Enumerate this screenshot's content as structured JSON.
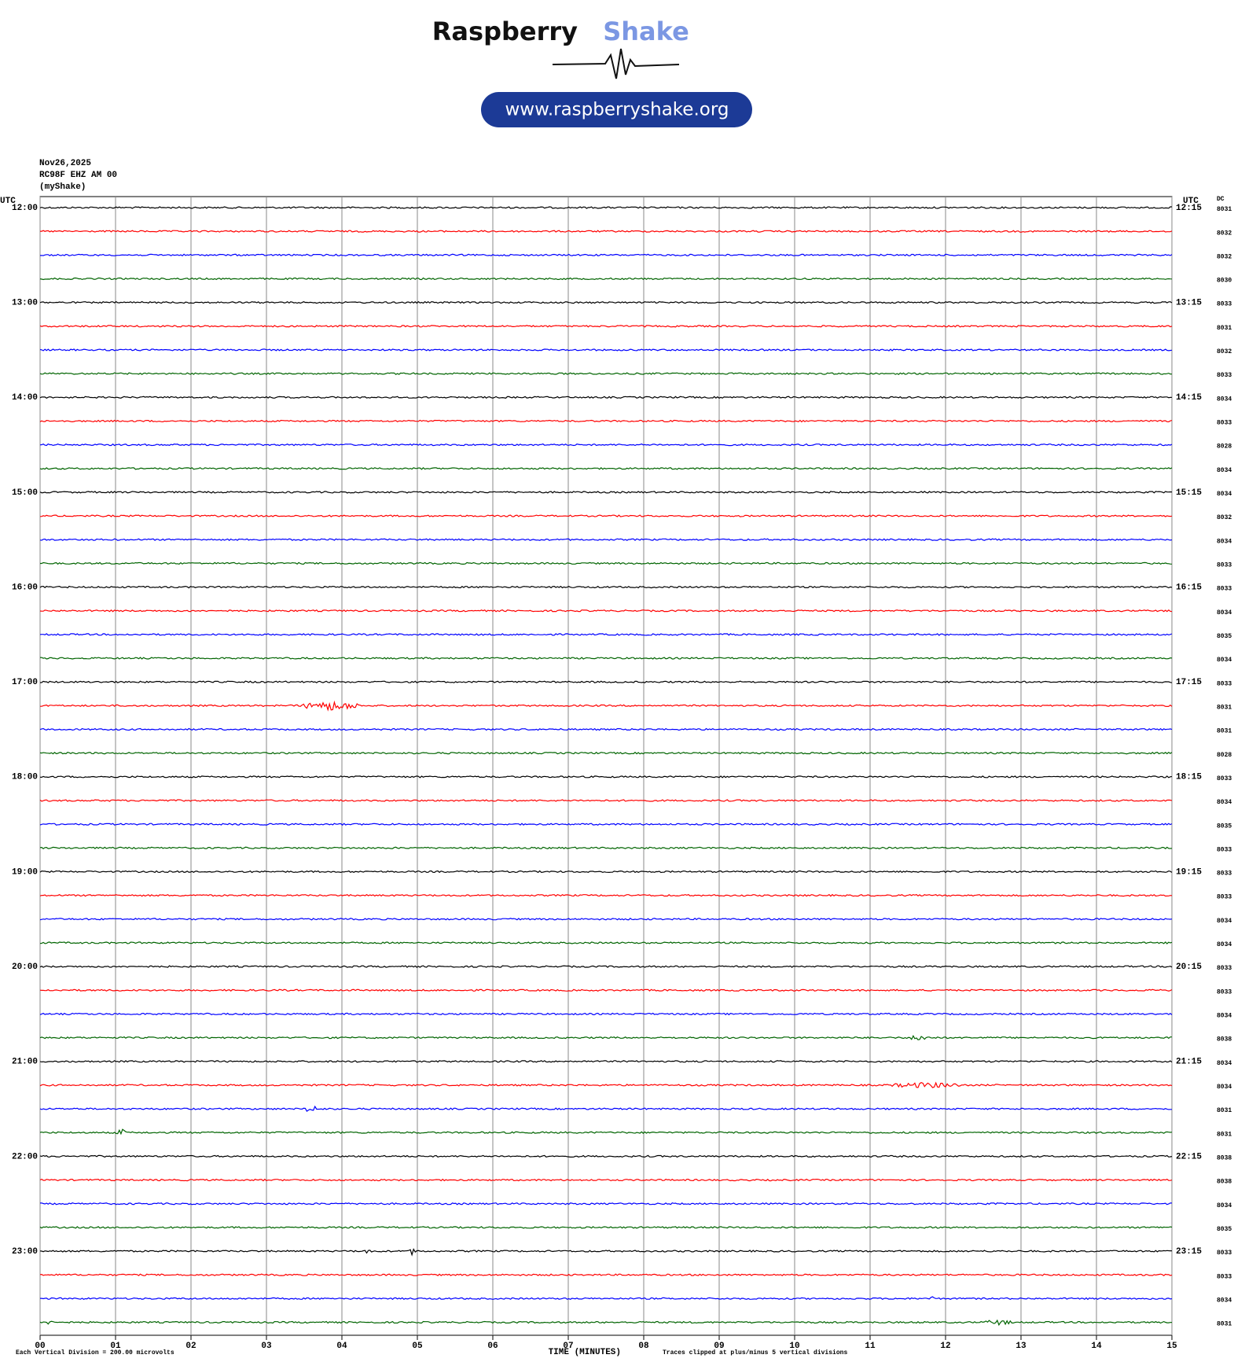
{
  "logo": {
    "brand": "Raspberry",
    "brand_accent": "Shake",
    "url": "www.raspberryshake.org"
  },
  "chart_data": {
    "type": "helicorder",
    "date": "Nov26,2025",
    "station": "RC98F EHZ AM 00",
    "source": "(myShake)",
    "left_axis_title": "UTC",
    "right_axis_title": "UTC",
    "dc_title": "DC",
    "xlabel": "TIME (MINUTES)",
    "scale_note": "Each Vertical Division =  200.00 microvolts",
    "clip_note": "Traces clipped at plus/minus 5 vertical divisions",
    "xlim": [
      0,
      15
    ],
    "xticks": [
      {
        "value": 0,
        "label": "00"
      },
      {
        "value": 1,
        "label": "01"
      },
      {
        "value": 2,
        "label": "02"
      },
      {
        "value": 3,
        "label": "03"
      },
      {
        "value": 4,
        "label": "04"
      },
      {
        "value": 5,
        "label": "05"
      },
      {
        "value": 6,
        "label": "06"
      },
      {
        "value": 7,
        "label": "07"
      },
      {
        "value": 8,
        "label": "08"
      },
      {
        "value": 9,
        "label": "09"
      },
      10,
      11,
      12,
      13,
      14,
      15
    ],
    "grid": true,
    "row_labels_left": [
      "12:00",
      "13:00",
      "14:00",
      "15:00",
      "16:00",
      "17:00",
      "18:00",
      "19:00",
      "20:00",
      "21:00",
      "22:00",
      "23:00"
    ],
    "row_labels_right": [
      "12:15",
      "13:15",
      "14:15",
      "15:15",
      "16:15",
      "17:15",
      "18:15",
      "19:15",
      "20:15",
      "21:15",
      "22:15",
      "23:15"
    ],
    "colors": [
      "#000000",
      "#ff0000",
      "#0000ff",
      "#006400"
    ],
    "dc": [
      8031,
      8032,
      8032,
      8030,
      8033,
      8031,
      8032,
      8033,
      8034,
      8033,
      8028,
      8034,
      8034,
      8032,
      8034,
      8033,
      8033,
      8034,
      8035,
      8034,
      8033,
      8031,
      8031,
      8028,
      8033,
      8034,
      8035,
      8033,
      8033,
      8033,
      8034,
      8034,
      8033,
      8033,
      8034,
      8038,
      8034,
      8034,
      8031,
      8031,
      8038,
      8038,
      8034,
      8035,
      8033,
      8033,
      8034,
      8031
    ]
  }
}
